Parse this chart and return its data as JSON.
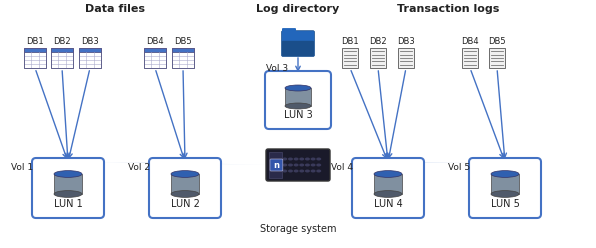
{
  "title_data_files": "Data files",
  "title_log_directory": "Log directory",
  "title_transaction_logs": "Transaction logs",
  "background_color": "#ffffff",
  "db_labels_group1": [
    "DB1",
    "DB2",
    "DB3"
  ],
  "db_labels_group2": [
    "DB4",
    "DB5"
  ],
  "db_labels_group3": [
    "DB1",
    "DB2",
    "DB3"
  ],
  "db_labels_group4": [
    "DB4",
    "DB5"
  ],
  "vol_labels": [
    "Vol 1",
    "Vol 2",
    "Vol 3",
    "Vol 4",
    "Vol 5"
  ],
  "lun_labels": [
    "LUN 1",
    "LUN 2",
    "LUN 3",
    "LUN 4",
    "LUN 5"
  ],
  "storage_label": "Storage system",
  "arrow_color": "#4472c4",
  "box_color": "#4472c4",
  "text_color": "#222222",
  "db_file_header_color": "#4472c4",
  "db_file_body_color": "#dce6f5",
  "trans_file_color": "#cccccc",
  "lun_top_color": "#3060b0",
  "lun_body_color": "#8090a0",
  "lun_bottom_color": "#505a6a",
  "folder_color": "#1a4e8a",
  "folder_light_color": "#2266bb",
  "storage_body_color": "#1a1a2a",
  "storage_accent": "#222244",
  "fan_color": "#d0dcf0"
}
